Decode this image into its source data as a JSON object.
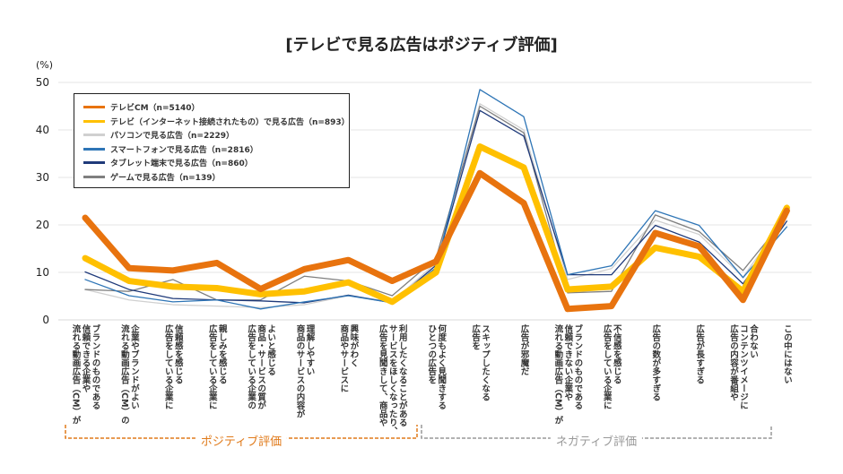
{
  "title": "[テレビで見る広告はポジティブ評価]",
  "chart_data": {
    "type": "line",
    "title": "[テレビで見る広告はポジティブ評価]",
    "ylabel": "(%)",
    "ylim": [
      0,
      50
    ],
    "yticks": [
      0,
      10,
      20,
      30,
      40,
      50
    ],
    "grid": true,
    "legend_position": "top-left",
    "categories": [
      "流れる動画広告（CM）が\n信頼できる企業や\nブランドのものである",
      "流れる動画広告（CM）の\n企業やブランドがよい",
      "広告をしている企業に\n信頼感を感じる",
      "広告をしている企業に\n親しみを感じる",
      "広告をしている企業の\n商品・サービスの質が\nよいと感じる",
      "商品のサービスの内容が\n理解しやすい",
      "商品やサービスに\n興味がわく",
      "広告を見聞きして、商品や\nサービスをほしくなったり、\n利用したくなることがある",
      "ひとつの広告を\n何度もよく見聞きする",
      "広告を\nスキップしたくなる",
      "広告が邪魔だ",
      "流れる動画広告（CM）が\n信頼できない企業や\nブランドのものである",
      "広告をしている企業に\n不信感を感じる",
      "広告の数が多すぎる",
      "広告が長すぎる",
      "広告の内容が番組や\nコンテンツイメージに\n合わない",
      "この中にはない"
    ],
    "series": [
      {
        "name": "テレビCM（n=5140）",
        "color": "#E8730E",
        "width": 7,
        "values": [
          21.5,
          10.9,
          10.4,
          12.0,
          6.5,
          10.7,
          12.6,
          8.2,
          12.3,
          30.9,
          24.6,
          2.3,
          2.9,
          18.3,
          15.5,
          4.2,
          23.0
        ]
      },
      {
        "name": "テレビ（インターネット接続されたもの）で見る広告（n=893）",
        "color": "#FFC000",
        "width": 7,
        "values": [
          13.0,
          8.2,
          7.0,
          6.7,
          5.4,
          6.0,
          7.9,
          3.8,
          10.0,
          36.5,
          32.1,
          6.4,
          7.0,
          15.2,
          13.3,
          6.0,
          23.6
        ]
      },
      {
        "name": "パソコンで見る広告（n=2229）",
        "color": "#D0D0D0",
        "width": 1.3,
        "values": [
          6.4,
          4.2,
          3.2,
          2.9,
          2.6,
          3.2,
          5.1,
          3.8,
          12.0,
          45.5,
          40.0,
          8.5,
          10.8,
          21.0,
          18.0,
          9.0,
          22.0
        ]
      },
      {
        "name": "スマートフォンで見る広告（n=2816）",
        "color": "#2E75B6",
        "width": 1.3,
        "values": [
          8.5,
          5.1,
          3.8,
          4.2,
          2.3,
          3.8,
          5.1,
          3.6,
          11.0,
          48.5,
          42.8,
          9.5,
          11.4,
          23.0,
          19.9,
          8.9,
          19.6
        ]
      },
      {
        "name": "タブレット端末で見る広告（n=860）",
        "color": "#1F3A7A",
        "width": 1.3,
        "values": [
          10.1,
          6.4,
          4.5,
          4.2,
          4.0,
          3.6,
          5.2,
          3.6,
          11.5,
          44.1,
          38.7,
          9.5,
          9.5,
          19.9,
          16.4,
          7.6,
          20.8
        ]
      },
      {
        "name": "ゲームで見る広告（n=139）",
        "color": "#7F7F7F",
        "width": 1.3,
        "values": [
          6.4,
          6.0,
          8.5,
          4.2,
          4.2,
          9.2,
          8.2,
          5.1,
          13.0,
          45.0,
          39.4,
          5.7,
          6.0,
          22.1,
          18.6,
          10.4,
          21.8
        ]
      }
    ],
    "groups": [
      {
        "label": "ポジティブ評価",
        "color": "#E07A1A"
      },
      {
        "label": "ネガティブ評価",
        "color": "#999999"
      }
    ]
  }
}
